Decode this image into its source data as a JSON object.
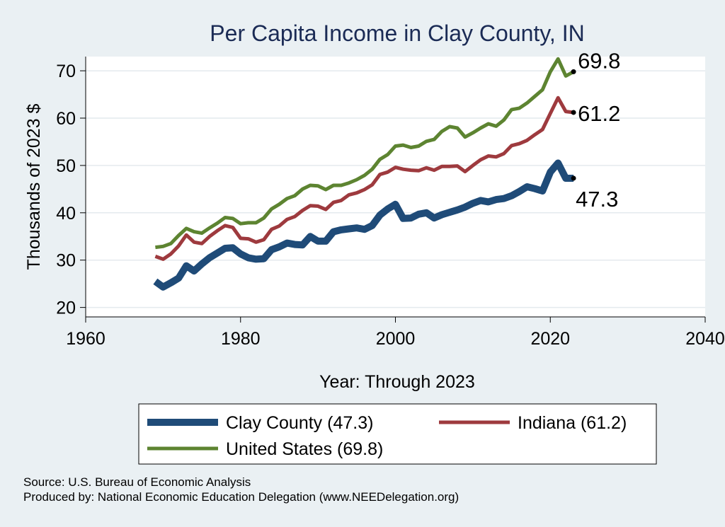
{
  "chart_data": {
    "type": "line",
    "title": "Per Capita Income in Clay County, IN",
    "xlabel": "Year: Through 2023",
    "ylabel": "Thousands of 2023 $",
    "xlim": [
      1960,
      2040
    ],
    "ylim": [
      18,
      73
    ],
    "xticks": [
      1960,
      1980,
      2000,
      2020,
      2040
    ],
    "yticks": [
      20,
      30,
      40,
      50,
      60,
      70
    ],
    "grid": true,
    "legend_position": "bottom",
    "series": [
      {
        "name": "Clay County (47.3)",
        "color": "#1f4b78",
        "end_label": "47.3",
        "x": [
          1969,
          1970,
          1971,
          1972,
          1973,
          1974,
          1975,
          1976,
          1977,
          1978,
          1979,
          1980,
          1981,
          1982,
          1983,
          1984,
          1985,
          1986,
          1987,
          1988,
          1989,
          1990,
          1991,
          1992,
          1993,
          1994,
          1995,
          1996,
          1997,
          1998,
          1999,
          2000,
          2001,
          2002,
          2003,
          2004,
          2005,
          2006,
          2007,
          2008,
          2009,
          2010,
          2011,
          2012,
          2013,
          2014,
          2015,
          2016,
          2017,
          2018,
          2019,
          2020,
          2021,
          2022,
          2023
        ],
        "y": [
          25.5,
          24.3,
          25.2,
          26.2,
          28.8,
          27.7,
          29.2,
          30.5,
          31.5,
          32.5,
          32.6,
          31.3,
          30.5,
          30.2,
          30.3,
          32.2,
          32.8,
          33.6,
          33.3,
          33.2,
          35.0,
          34.0,
          34.0,
          36.0,
          36.4,
          36.6,
          36.8,
          36.5,
          37.3,
          39.5,
          40.8,
          41.8,
          38.8,
          38.9,
          39.7,
          40.0,
          38.9,
          39.6,
          40.1,
          40.6,
          41.2,
          42.0,
          42.6,
          42.3,
          42.8,
          43.0,
          43.6,
          44.5,
          45.5,
          45.1,
          44.6,
          48.6,
          50.5,
          47.3,
          47.3
        ]
      },
      {
        "name": "Indiana (61.2)",
        "color": "#9e3a3e",
        "end_label": "61.2",
        "x": [
          1969,
          1970,
          1971,
          1972,
          1973,
          1974,
          1975,
          1976,
          1977,
          1978,
          1979,
          1980,
          1981,
          1982,
          1983,
          1984,
          1985,
          1986,
          1987,
          1988,
          1989,
          1990,
          1991,
          1992,
          1993,
          1994,
          1995,
          1996,
          1997,
          1998,
          1999,
          2000,
          2001,
          2002,
          2003,
          2004,
          2005,
          2006,
          2007,
          2008,
          2009,
          2010,
          2011,
          2012,
          2013,
          2014,
          2015,
          2016,
          2017,
          2018,
          2019,
          2020,
          2021,
          2022,
          2023
        ],
        "y": [
          30.8,
          30.2,
          31.3,
          33.0,
          35.3,
          33.8,
          33.5,
          35.0,
          36.2,
          37.3,
          36.9,
          34.6,
          34.5,
          33.8,
          34.3,
          36.5,
          37.2,
          38.6,
          39.2,
          40.5,
          41.5,
          41.4,
          40.7,
          42.2,
          42.6,
          43.8,
          44.2,
          44.9,
          45.9,
          48.1,
          48.6,
          49.6,
          49.2,
          49.0,
          48.9,
          49.5,
          49.0,
          49.8,
          49.8,
          49.9,
          48.7,
          50.0,
          51.2,
          52.0,
          51.8,
          52.5,
          54.2,
          54.6,
          55.3,
          56.5,
          57.6,
          61.0,
          64.3,
          61.4,
          61.2
        ]
      },
      {
        "name": "United States (69.8)",
        "color": "#5d8431",
        "end_label": "69.8",
        "x": [
          1969,
          1970,
          1971,
          1972,
          1973,
          1974,
          1975,
          1976,
          1977,
          1978,
          1979,
          1980,
          1981,
          1982,
          1983,
          1984,
          1985,
          1986,
          1987,
          1988,
          1989,
          1990,
          1991,
          1992,
          1993,
          1994,
          1995,
          1996,
          1997,
          1998,
          1999,
          2000,
          2001,
          2002,
          2003,
          2004,
          2005,
          2006,
          2007,
          2008,
          2009,
          2010,
          2011,
          2012,
          2013,
          2014,
          2015,
          2016,
          2017,
          2018,
          2019,
          2020,
          2021,
          2022,
          2023
        ],
        "y": [
          32.7,
          32.9,
          33.5,
          35.2,
          36.7,
          36.0,
          35.7,
          36.8,
          37.8,
          39.0,
          38.8,
          37.7,
          37.9,
          37.9,
          38.9,
          40.8,
          41.8,
          43.0,
          43.6,
          45.0,
          45.8,
          45.7,
          44.9,
          45.8,
          45.8,
          46.3,
          47.0,
          47.9,
          49.2,
          51.3,
          52.3,
          54.1,
          54.3,
          53.8,
          54.1,
          55.1,
          55.5,
          57.2,
          58.2,
          57.9,
          56.0,
          56.9,
          57.9,
          58.8,
          58.3,
          59.6,
          61.8,
          62.1,
          63.2,
          64.6,
          66.0,
          69.8,
          72.5,
          68.9,
          69.8
        ]
      }
    ],
    "legend": [
      {
        "label": "Clay County (47.3)",
        "color": "#1f4b78"
      },
      {
        "label": "Indiana (61.2)",
        "color": "#9e3a3e"
      },
      {
        "label": "United States (69.8)",
        "color": "#5d8431"
      }
    ]
  },
  "footer": {
    "source": "Source: U.S. Bureau of Economic Analysis",
    "produced_by": "Produced by: National Economic Education Delegation (www.NEEDelegation.org)"
  }
}
